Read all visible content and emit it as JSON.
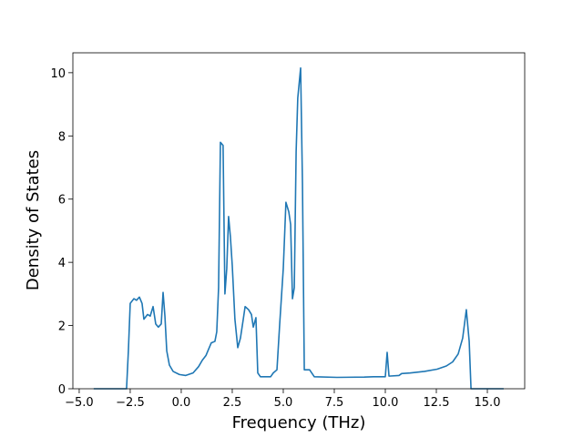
{
  "chart_data": {
    "type": "line",
    "xlabel": "Frequency (THz)",
    "ylabel": "Density of States",
    "color": "#1f77b4",
    "x": [
      -4.29,
      -2.68,
      -2.59,
      -2.5,
      -2.32,
      -2.19,
      -2.05,
      -1.92,
      -1.83,
      -1.65,
      -1.52,
      -1.38,
      -1.25,
      -1.12,
      -0.98,
      -0.89,
      -0.8,
      -0.71,
      -0.58,
      -0.4,
      -0.09,
      0.22,
      0.58,
      0.85,
      1.03,
      1.21,
      1.34,
      1.47,
      1.65,
      1.74,
      1.83,
      1.92,
      2.05,
      2.14,
      2.23,
      2.32,
      2.41,
      2.5,
      2.63,
      2.77,
      2.9,
      3.04,
      3.13,
      3.3,
      3.44,
      3.53,
      3.66,
      3.75,
      3.88,
      4.38,
      4.51,
      4.69,
      4.82,
      5.0,
      5.13,
      5.27,
      5.36,
      5.45,
      5.54,
      5.63,
      5.71,
      5.85,
      5.94,
      6.03,
      6.29,
      6.52,
      7.63,
      8.97,
      9.42,
      10.0,
      10.09,
      10.18,
      10.67,
      10.8,
      11.21,
      11.92,
      12.54,
      12.99,
      13.3,
      13.57,
      13.79,
      13.97,
      14.11,
      14.2,
      15.8
    ],
    "values": [
      0,
      0,
      1.2,
      2.7,
      2.85,
      2.8,
      2.9,
      2.7,
      2.2,
      2.35,
      2.3,
      2.6,
      2.05,
      1.95,
      2.05,
      3.05,
      2.3,
      1.2,
      0.75,
      0.55,
      0.45,
      0.42,
      0.5,
      0.7,
      0.9,
      1.05,
      1.25,
      1.45,
      1.5,
      1.8,
      3.2,
      7.8,
      7.7,
      3.0,
      3.8,
      5.45,
      4.8,
      3.9,
      2.2,
      1.3,
      1.6,
      2.2,
      2.6,
      2.5,
      2.35,
      1.95,
      2.25,
      0.5,
      0.38,
      0.38,
      0.5,
      0.6,
      2.0,
      3.8,
      5.9,
      5.6,
      5.2,
      2.85,
      3.2,
      7.5,
      9.2,
      10.15,
      6.5,
      0.6,
      0.6,
      0.38,
      0.36,
      0.37,
      0.38,
      0.38,
      1.15,
      0.4,
      0.42,
      0.48,
      0.5,
      0.55,
      0.62,
      0.72,
      0.85,
      1.1,
      1.6,
      2.5,
      1.5,
      0,
      0
    ],
    "xlim": [
      -5.31,
      16.83
    ],
    "ylim": [
      0,
      10.63
    ],
    "xticks": [
      {
        "value": -5,
        "label": "−5.0"
      },
      {
        "value": -2.5,
        "label": "−2.5"
      },
      {
        "value": 0,
        "label": "0.0"
      },
      2.5,
      {
        "value": 5,
        "label": "5.0"
      },
      7.5,
      {
        "value": 10,
        "label": "10.0"
      },
      12.5,
      {
        "value": 15,
        "label": "15.0"
      }
    ],
    "yticks": [
      0,
      2,
      4,
      6,
      8,
      10
    ]
  }
}
